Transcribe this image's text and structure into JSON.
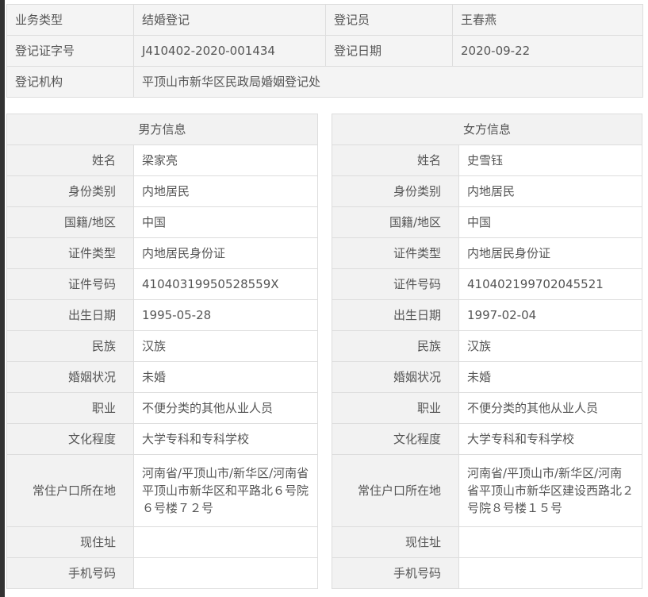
{
  "registration": {
    "business_type_label": "业务类型",
    "business_type": "结婚登记",
    "registrar_label": "登记员",
    "registrar": "王春燕",
    "cert_no_label": "登记证字号",
    "cert_no": "J410402-2020-001434",
    "date_label": "登记日期",
    "date": "2020-09-22",
    "org_label": "登记机构",
    "org": "平顶山市新华区民政局婚姻登记处"
  },
  "male": {
    "title": "男方信息",
    "rows": [
      {
        "label": "姓名",
        "value": "梁家亮"
      },
      {
        "label": "身份类别",
        "value": "内地居民"
      },
      {
        "label": "国籍/地区",
        "value": "中国"
      },
      {
        "label": "证件类型",
        "value": "内地居民身份证"
      },
      {
        "label": "证件号码",
        "value": "41040319950528559X"
      },
      {
        "label": "出生日期",
        "value": "1995-05-28"
      },
      {
        "label": "民族",
        "value": "汉族"
      },
      {
        "label": "婚姻状况",
        "value": "未婚"
      },
      {
        "label": "职业",
        "value": "不便分类的其他从业人员"
      },
      {
        "label": "文化程度",
        "value": "大学专科和专科学校"
      },
      {
        "label": "常住户口所在地",
        "value": "河南省/平顶山市/新华区/河南省平顶山市新华区和平路北６号院６号楼７２号"
      },
      {
        "label": "现住址",
        "value": ""
      },
      {
        "label": "手机号码",
        "value": ""
      }
    ]
  },
  "female": {
    "title": "女方信息",
    "rows": [
      {
        "label": "姓名",
        "value": "史雪钰"
      },
      {
        "label": "身份类别",
        "value": "内地居民"
      },
      {
        "label": "国籍/地区",
        "value": "中国"
      },
      {
        "label": "证件类型",
        "value": "内地居民身份证"
      },
      {
        "label": "证件号码",
        "value": "410402199702045521"
      },
      {
        "label": "出生日期",
        "value": "1997-02-04"
      },
      {
        "label": "民族",
        "value": "汉族"
      },
      {
        "label": "婚姻状况",
        "value": "未婚"
      },
      {
        "label": "职业",
        "value": "不便分类的其他从业人员"
      },
      {
        "label": "文化程度",
        "value": "大学专科和专科学校"
      },
      {
        "label": "常住户口所在地",
        "value": "河南省/平顶山市/新华区/河南省平顶山市新华区建设西路北２号院８号楼１５号"
      },
      {
        "label": "现住址",
        "value": ""
      },
      {
        "label": "手机号码",
        "value": ""
      }
    ]
  }
}
